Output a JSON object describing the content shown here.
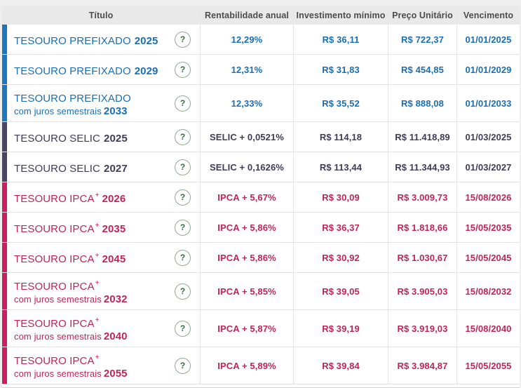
{
  "page": {
    "background": "#eeeeee"
  },
  "table": {
    "columns": [
      {
        "key": "titulo",
        "label": "Título"
      },
      {
        "key": "rentabilidade",
        "label": "Rentabilidade anual"
      },
      {
        "key": "investimento",
        "label": "Investimento mínimo"
      },
      {
        "key": "preco",
        "label": "Preço Unitário"
      },
      {
        "key": "vencimento",
        "label": "Vencimento"
      }
    ],
    "help_icon_glyph": "?",
    "groups": {
      "prefixado": {
        "text": "#1a6fb4",
        "bar": "#1e77bd"
      },
      "selic": {
        "text": "#3e3c58",
        "bar": "#494365"
      },
      "ipca": {
        "text": "#c02459",
        "bar": "#ca1f5e"
      }
    },
    "rows": [
      {
        "group": "prefixado",
        "name": "TESOURO PREFIXADO",
        "sup": "",
        "line2": "",
        "year": "2025",
        "rate": "12,29%",
        "min": "R$ 36,11",
        "price": "R$ 722,37",
        "maturity": "01/01/2025"
      },
      {
        "group": "prefixado",
        "name": "TESOURO PREFIXADO",
        "sup": "",
        "line2": "",
        "year": "2029",
        "rate": "12,31%",
        "min": "R$ 31,83",
        "price": "R$ 454,85",
        "maturity": "01/01/2029"
      },
      {
        "group": "prefixado",
        "name": "TESOURO PREFIXADO",
        "sup": "",
        "line2": "com juros semestrais",
        "year": "2033",
        "rate": "12,33%",
        "min": "R$ 35,52",
        "price": "R$ 888,08",
        "maturity": "01/01/2033"
      },
      {
        "group": "selic",
        "name": "TESOURO SELIC",
        "sup": "",
        "line2": "",
        "year": "2025",
        "rate": "SELIC + 0,0521%",
        "min": "R$ 114,18",
        "price": "R$ 11.418,89",
        "maturity": "01/03/2025"
      },
      {
        "group": "selic",
        "name": "TESOURO SELIC",
        "sup": "",
        "line2": "",
        "year": "2027",
        "rate": "SELIC + 0,1626%",
        "min": "R$ 113,44",
        "price": "R$ 11.344,93",
        "maturity": "01/03/2027"
      },
      {
        "group": "ipca",
        "name": "TESOURO IPCA",
        "sup": "+",
        "line2": "",
        "year": "2026",
        "rate": "IPCA + 5,67%",
        "min": "R$ 30,09",
        "price": "R$ 3.009,73",
        "maturity": "15/08/2026"
      },
      {
        "group": "ipca",
        "name": "TESOURO IPCA",
        "sup": "+",
        "line2": "",
        "year": "2035",
        "rate": "IPCA + 5,86%",
        "min": "R$ 36,37",
        "price": "R$ 1.818,66",
        "maturity": "15/05/2035"
      },
      {
        "group": "ipca",
        "name": "TESOURO IPCA",
        "sup": "+",
        "line2": "",
        "year": "2045",
        "rate": "IPCA + 5,86%",
        "min": "R$ 30,92",
        "price": "R$ 1.030,67",
        "maturity": "15/05/2045"
      },
      {
        "group": "ipca",
        "name": "TESOURO IPCA",
        "sup": "+",
        "line2": "com juros semestrais",
        "year": "2032",
        "rate": "IPCA + 5,85%",
        "min": "R$ 39,05",
        "price": "R$ 3.905,03",
        "maturity": "15/08/2032"
      },
      {
        "group": "ipca",
        "name": "TESOURO IPCA",
        "sup": "+",
        "line2": "com juros semestrais",
        "year": "2040",
        "rate": "IPCA + 5,87%",
        "min": "R$ 39,19",
        "price": "R$ 3.919,03",
        "maturity": "15/08/2040"
      },
      {
        "group": "ipca",
        "name": "TESOURO IPCA",
        "sup": "+",
        "line2": "com juros semestrais",
        "year": "2055",
        "rate": "IPCA + 5,89%",
        "min": "R$ 39,84",
        "price": "R$ 3.984,87",
        "maturity": "15/05/2055"
      }
    ]
  }
}
